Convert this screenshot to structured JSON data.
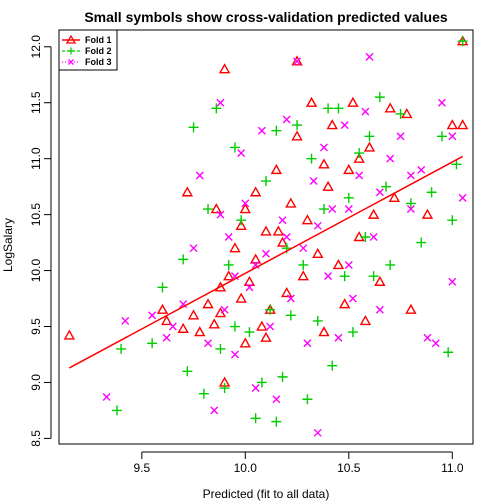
{
  "chart_data": {
    "type": "scatter",
    "title": "Small symbols show cross-validation predicted values",
    "xlabel": "Predicted (fit to all data)",
    "ylabel": "LogSalary",
    "xlim": [
      9.1,
      11.1
    ],
    "ylim": [
      8.45,
      12.15
    ],
    "xticks": [
      9.5,
      10.0,
      10.5,
      11.0
    ],
    "xtick_labels": [
      "9.5",
      "10.0",
      "10.5",
      "11.0"
    ],
    "yticks": [
      8.5,
      9.0,
      9.5,
      10.0,
      10.5,
      11.0,
      11.5,
      12.0
    ],
    "ytick_labels": [
      "8.5",
      "9.0",
      "9.5",
      "10.0",
      "10.5",
      "11.0",
      "11.5",
      "12.0"
    ],
    "legend_position": "top-left",
    "series": [
      {
        "name": "Fold 1",
        "color": "#ff0000",
        "marker": "triangle",
        "fit_line": {
          "x": [
            9.15,
            11.05
          ],
          "y": [
            9.13,
            11.02
          ]
        },
        "points": [
          [
            9.15,
            9.42
          ],
          [
            9.62,
            9.55
          ],
          [
            9.7,
            9.48
          ],
          [
            9.75,
            9.6
          ],
          [
            9.78,
            9.45
          ],
          [
            9.82,
            9.7
          ],
          [
            9.85,
            9.52
          ],
          [
            9.88,
            9.85
          ],
          [
            9.88,
            9.62
          ],
          [
            9.9,
            11.8
          ],
          [
            9.9,
            9.0
          ],
          [
            9.92,
            9.95
          ],
          [
            9.95,
            10.2
          ],
          [
            9.98,
            10.4
          ],
          [
            9.98,
            9.75
          ],
          [
            10.0,
            10.55
          ],
          [
            10.02,
            9.9
          ],
          [
            10.05,
            10.1
          ],
          [
            10.05,
            10.7
          ],
          [
            10.08,
            9.5
          ],
          [
            10.1,
            10.35
          ],
          [
            10.12,
            9.65
          ],
          [
            10.15,
            10.9
          ],
          [
            10.18,
            10.25
          ],
          [
            10.2,
            9.8
          ],
          [
            10.22,
            10.6
          ],
          [
            10.25,
            11.2
          ],
          [
            10.28,
            9.95
          ],
          [
            10.3,
            10.45
          ],
          [
            10.32,
            11.5
          ],
          [
            10.35,
            10.15
          ],
          [
            10.38,
            9.45
          ],
          [
            10.4,
            10.75
          ],
          [
            10.42,
            11.3
          ],
          [
            10.45,
            10.05
          ],
          [
            10.48,
            9.7
          ],
          [
            10.5,
            10.9
          ],
          [
            10.52,
            11.5
          ],
          [
            10.55,
            10.3
          ],
          [
            10.58,
            9.55
          ],
          [
            10.6,
            11.1
          ],
          [
            10.62,
            10.5
          ],
          [
            10.65,
            9.9
          ],
          [
            10.7,
            11.45
          ],
          [
            10.72,
            10.65
          ],
          [
            10.78,
            11.4
          ],
          [
            10.8,
            9.65
          ],
          [
            10.88,
            10.5
          ],
          [
            11.0,
            11.3
          ],
          [
            11.05,
            12.05
          ],
          [
            11.05,
            11.3
          ],
          [
            9.6,
            9.65
          ],
          [
            9.72,
            10.7
          ],
          [
            10.1,
            9.4
          ],
          [
            10.25,
            11.87
          ],
          [
            10.38,
            10.95
          ],
          [
            10.55,
            11.0
          ],
          [
            9.86,
            10.55
          ],
          [
            10.0,
            9.35
          ],
          [
            10.16,
            10.35
          ]
        ]
      },
      {
        "name": "Fold 2",
        "color": "#00cc00",
        "marker": "plus",
        "points": [
          [
            9.38,
            8.75
          ],
          [
            9.4,
            9.3
          ],
          [
            9.55,
            9.35
          ],
          [
            9.72,
            9.1
          ],
          [
            9.75,
            11.28
          ],
          [
            9.8,
            8.9
          ],
          [
            9.82,
            10.55
          ],
          [
            9.86,
            11.45
          ],
          [
            9.88,
            9.3
          ],
          [
            9.9,
            8.95
          ],
          [
            9.92,
            10.05
          ],
          [
            9.95,
            11.1
          ],
          [
            9.98,
            10.45
          ],
          [
            10.02,
            9.45
          ],
          [
            10.05,
            8.68
          ],
          [
            10.08,
            9.0
          ],
          [
            10.1,
            10.8
          ],
          [
            10.12,
            9.65
          ],
          [
            10.15,
            8.65
          ],
          [
            10.18,
            9.05
          ],
          [
            10.2,
            10.2
          ],
          [
            10.22,
            9.6
          ],
          [
            10.25,
            11.3
          ],
          [
            10.28,
            10.05
          ],
          [
            10.3,
            8.85
          ],
          [
            10.32,
            11.0
          ],
          [
            10.35,
            9.55
          ],
          [
            10.38,
            10.55
          ],
          [
            10.42,
            9.15
          ],
          [
            10.45,
            11.45
          ],
          [
            10.48,
            9.95
          ],
          [
            10.5,
            10.65
          ],
          [
            10.52,
            9.45
          ],
          [
            10.55,
            11.05
          ],
          [
            10.58,
            10.3
          ],
          [
            10.6,
            11.2
          ],
          [
            10.62,
            9.95
          ],
          [
            10.65,
            11.55
          ],
          [
            10.68,
            10.75
          ],
          [
            10.7,
            10.05
          ],
          [
            10.75,
            11.4
          ],
          [
            10.8,
            10.6
          ],
          [
            10.85,
            10.25
          ],
          [
            10.9,
            10.7
          ],
          [
            10.95,
            11.2
          ],
          [
            10.98,
            9.27
          ],
          [
            11.0,
            10.45
          ],
          [
            11.02,
            10.95
          ],
          [
            11.05,
            12.05
          ],
          [
            9.6,
            9.85
          ],
          [
            9.7,
            10.1
          ],
          [
            10.15,
            11.25
          ],
          [
            10.4,
            11.45
          ],
          [
            9.95,
            9.5
          ]
        ]
      },
      {
        "name": "Fold 3",
        "color": "#ff00ff",
        "marker": "cross",
        "points": [
          [
            9.33,
            8.87
          ],
          [
            9.42,
            9.55
          ],
          [
            9.55,
            9.6
          ],
          [
            9.62,
            9.4
          ],
          [
            9.7,
            9.7
          ],
          [
            9.78,
            10.85
          ],
          [
            9.82,
            9.35
          ],
          [
            9.85,
            8.75
          ],
          [
            9.88,
            11.5
          ],
          [
            9.9,
            9.65
          ],
          [
            9.92,
            10.3
          ],
          [
            9.95,
            9.25
          ],
          [
            9.98,
            11.05
          ],
          [
            10.0,
            10.6
          ],
          [
            10.02,
            9.85
          ],
          [
            10.05,
            8.95
          ],
          [
            10.08,
            11.25
          ],
          [
            10.1,
            10.15
          ],
          [
            10.12,
            9.5
          ],
          [
            10.15,
            8.85
          ],
          [
            10.18,
            10.45
          ],
          [
            10.2,
            11.35
          ],
          [
            10.22,
            9.75
          ],
          [
            10.25,
            11.87
          ],
          [
            10.28,
            10.2
          ],
          [
            10.3,
            9.35
          ],
          [
            10.33,
            10.8
          ],
          [
            10.35,
            8.55
          ],
          [
            10.38,
            11.1
          ],
          [
            10.4,
            9.95
          ],
          [
            10.42,
            10.55
          ],
          [
            10.45,
            9.4
          ],
          [
            10.48,
            11.3
          ],
          [
            10.5,
            10.05
          ],
          [
            10.52,
            9.75
          ],
          [
            10.55,
            10.85
          ],
          [
            10.58,
            11.42
          ],
          [
            10.6,
            11.91
          ],
          [
            10.62,
            10.3
          ],
          [
            10.65,
            9.65
          ],
          [
            10.7,
            11.0
          ],
          [
            10.75,
            11.2
          ],
          [
            10.8,
            10.55
          ],
          [
            10.85,
            10.9
          ],
          [
            10.88,
            9.4
          ],
          [
            10.92,
            9.35
          ],
          [
            10.95,
            11.5
          ],
          [
            11.0,
            11.2
          ],
          [
            11.0,
            9.9
          ],
          [
            11.05,
            10.65
          ],
          [
            9.65,
            9.5
          ],
          [
            9.75,
            10.2
          ],
          [
            9.88,
            10.5
          ],
          [
            10.05,
            10.05
          ],
          [
            10.2,
            10.3
          ],
          [
            10.35,
            10.4
          ],
          [
            10.5,
            10.55
          ],
          [
            10.65,
            10.7
          ],
          [
            10.8,
            10.85
          ],
          [
            9.95,
            9.95
          ]
        ]
      }
    ]
  }
}
